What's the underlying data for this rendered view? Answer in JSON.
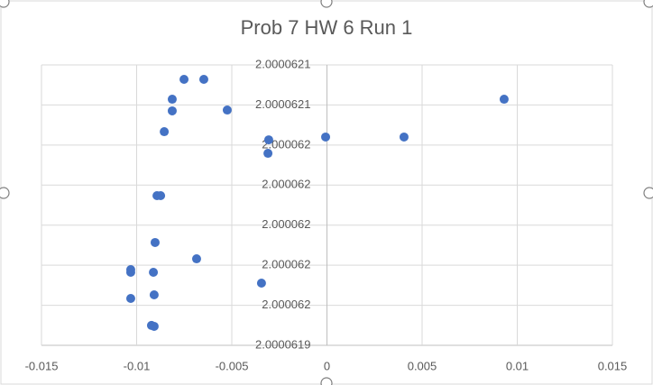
{
  "chart_data": {
    "type": "scatter",
    "title": "Prob 7 HW 6 Run 1",
    "series": [
      {
        "name": "Run 1",
        "color": "#4472c4",
        "x": [
          -0.00751,
          -0.00647,
          -0.00813,
          0.00931,
          -0.00813,
          -0.00524,
          -0.00855,
          -0.00306,
          -7e-05,
          0.00405,
          -0.0031,
          -0.00893,
          -0.00874,
          -0.00903,
          -0.00685,
          -0.01031,
          -0.01031,
          -0.00912,
          -0.00344,
          -0.00908,
          -0.01031,
          -0.00922,
          -0.00908
        ],
        "values": [
          2.0000621192,
          2.0000621192,
          2.0000621043,
          2.0000621043,
          2.0000620956,
          2.0000620962,
          2.00006208,
          2.0000620739,
          2.000062076,
          2.000062076,
          2.0000620638,
          2.0000620321,
          2.0000620321,
          2.000061997,
          2.0000619848,
          2.0000619767,
          2.0000619747,
          2.0000619747,
          2.0000619666,
          2.0000619578,
          2.0000619551,
          2.0000619349,
          2.0000619342
        ]
      }
    ],
    "xlim": [
      -0.015,
      0.015
    ],
    "xticks": [
      -0.015,
      -0.01,
      -0.005,
      0,
      0.005,
      0.01,
      0.015
    ],
    "ylim": [
      2.00006192,
      2.00006213
    ],
    "yticks": [
      {
        "value": 2.00006192,
        "label": "2.0000619"
      },
      {
        "value": 2.00006195,
        "label": "2.000062"
      },
      {
        "value": 2.00006198,
        "label": "2.000062"
      },
      {
        "value": 2.00006201,
        "label": "2.000062"
      },
      {
        "value": 2.00006204,
        "label": "2.000062"
      },
      {
        "value": 2.00006207,
        "label": "2.000062"
      },
      {
        "value": 2.0000621,
        "label": "2.0000621"
      },
      {
        "value": 2.00006213,
        "label": "2.0000621"
      }
    ],
    "grid": true
  }
}
